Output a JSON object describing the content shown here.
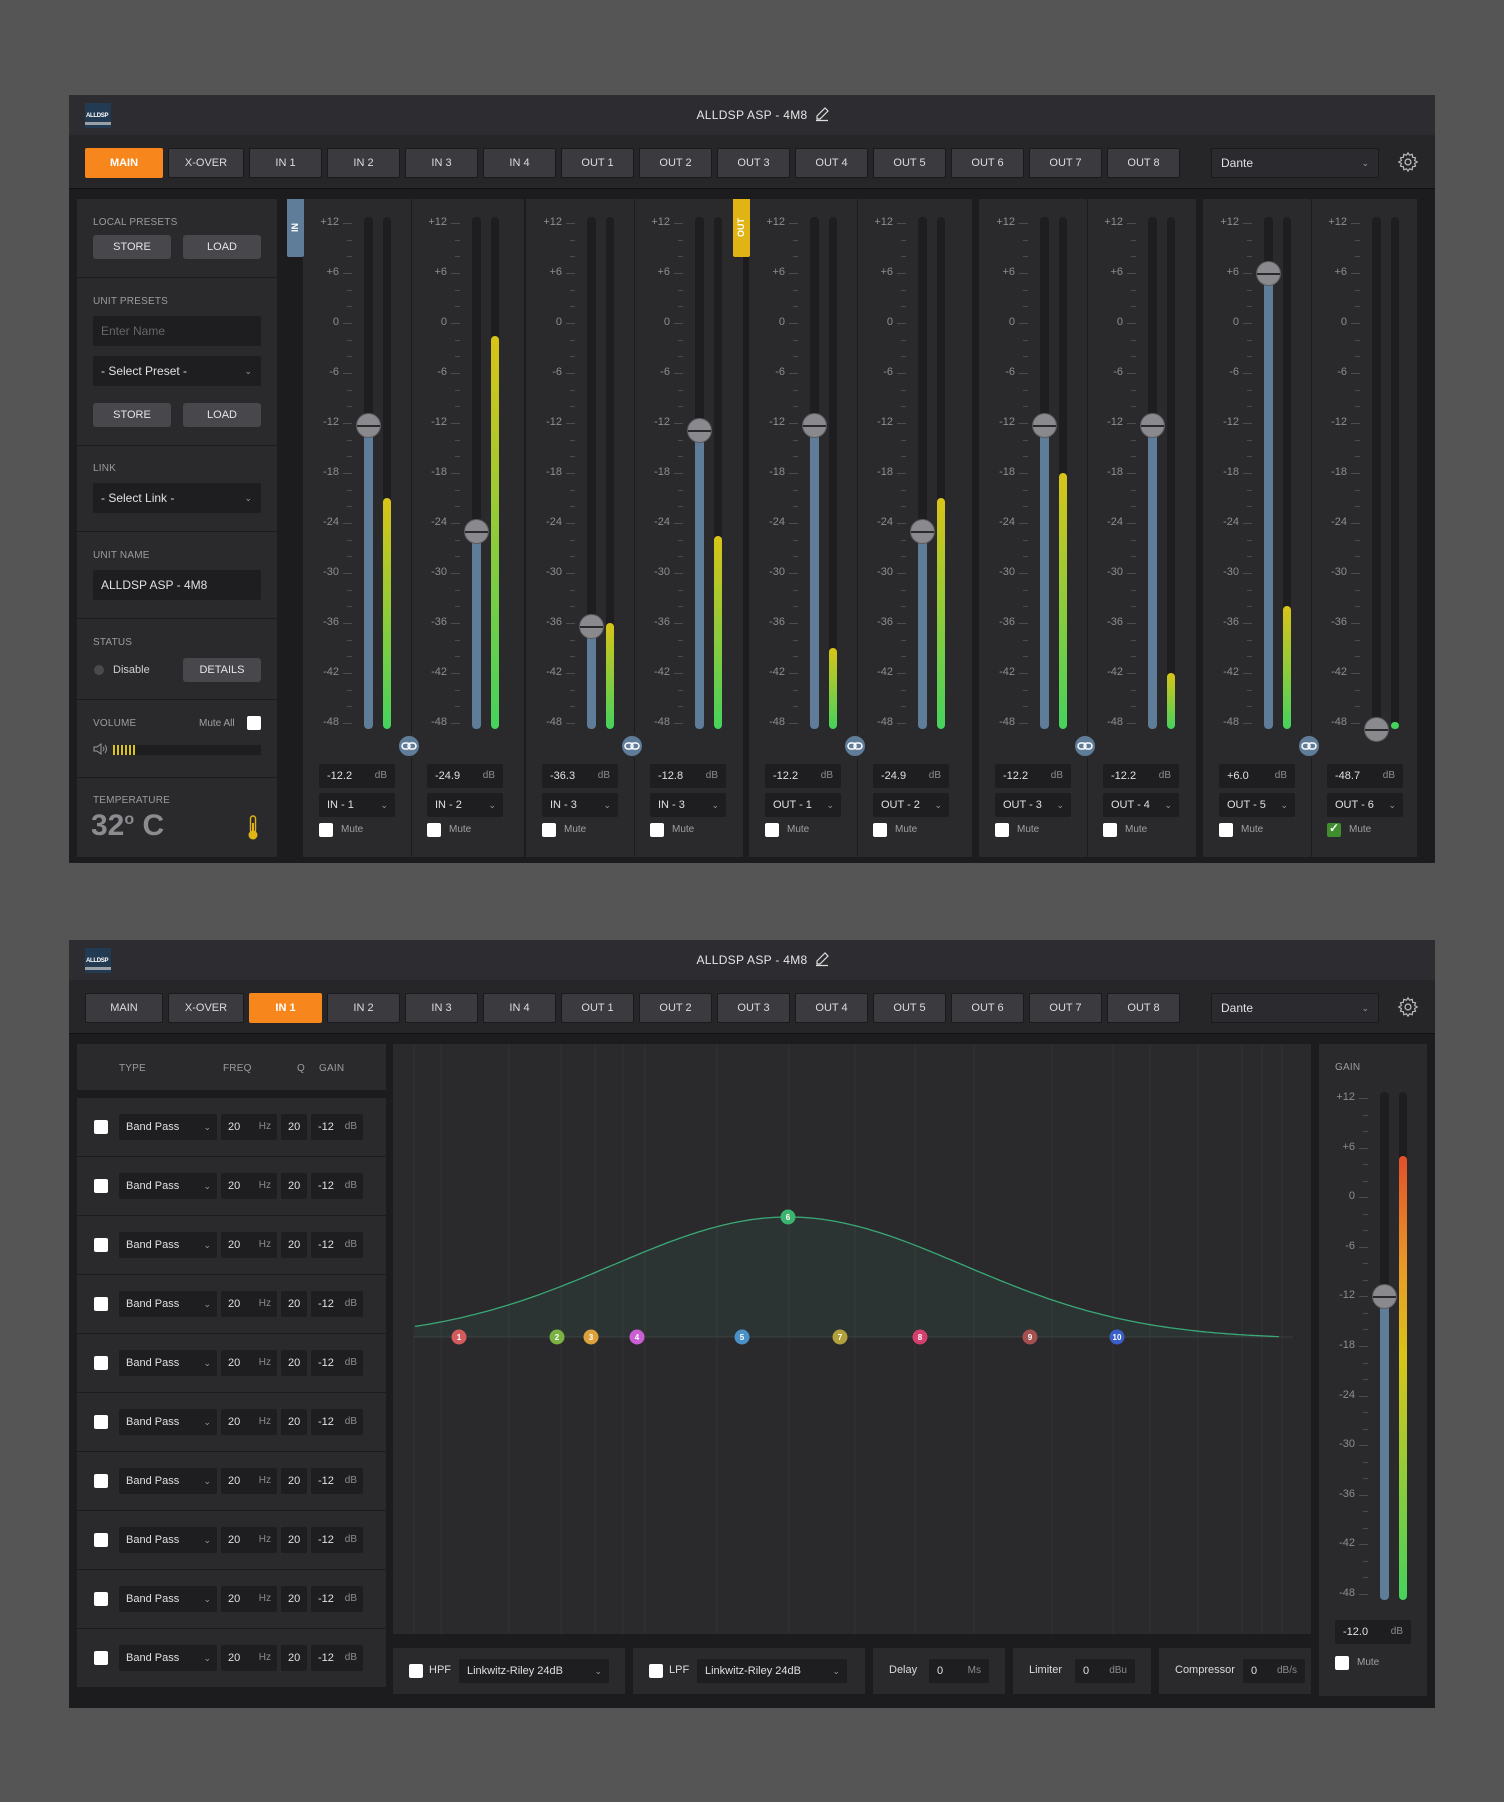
{
  "app": {
    "title": "ALLDSP ASP - 4M8",
    "logo_text": "ALLDSP"
  },
  "tabs": [
    "MAIN",
    "X-OVER",
    "IN 1",
    "IN 2",
    "IN 3",
    "IN 4",
    "OUT 1",
    "OUT 2",
    "OUT 3",
    "OUT 4",
    "OUT 5",
    "OUT 6",
    "OUT 7",
    "OUT 8"
  ],
  "network_select": "Dante",
  "sidebar": {
    "local_presets_label": "LOCAL PRESETS",
    "store_label": "STORE",
    "load_label": "LOAD",
    "unit_presets_label": "UNIT PRESETS",
    "name_placeholder": "Enter Name",
    "preset_select": "- Select Preset -",
    "link_label": "LINK",
    "link_select": "- Select Link -",
    "unit_name_label": "UNIT NAME",
    "unit_name_value": "ALLDSP ASP - 4M8",
    "status_label": "STATUS",
    "status_value": "Disable",
    "details_label": "DETAILS",
    "volume_label": "VOLUME",
    "mute_all_label": "Mute All",
    "temperature_label": "TEMPERATURE",
    "temperature_value": "32",
    "temperature_degree": "o",
    "temperature_unit": "C"
  },
  "mixer": {
    "in_badge": "IN",
    "out_badge": "OUT",
    "scale": [
      "+12",
      "+6",
      "0",
      "-6",
      "-12",
      "-18",
      "-24",
      "-30",
      "-36",
      "-42",
      "-48"
    ],
    "mute_label": "Mute",
    "db_unit": "dB",
    "channels": [
      {
        "gain": "-12.2",
        "source": "IN - 1",
        "fader": -12.2,
        "meter": -21,
        "meter_color": "#d9c417",
        "muted": false
      },
      {
        "gain": "-24.9",
        "source": "IN - 2",
        "fader": -24.9,
        "meter": -1.5,
        "meter_color": "#d9c417",
        "muted": false
      },
      {
        "gain": "-36.3",
        "source": "IN - 3",
        "fader": -36.3,
        "meter": -36,
        "meter_color": "#d9c417",
        "muted": false
      },
      {
        "gain": "-12.8",
        "source": "IN - 3",
        "fader": -12.8,
        "meter": -25.5,
        "meter_color": "#d9c417",
        "muted": false
      },
      {
        "gain": "-12.2",
        "source": "OUT - 1",
        "fader": -12.2,
        "meter": -39,
        "meter_color": "#d9c417",
        "muted": false
      },
      {
        "gain": "-24.9",
        "source": "OUT - 2",
        "fader": -24.9,
        "meter": -21,
        "meter_color": "#d9c417",
        "muted": false
      },
      {
        "gain": "-12.2",
        "source": "OUT - 3",
        "fader": -12.2,
        "meter": -18,
        "meter_color": "#d9c417",
        "muted": false
      },
      {
        "gain": "-12.2",
        "source": "OUT - 4",
        "fader": -12.2,
        "meter": -42,
        "meter_color": "#d9c417",
        "muted": false
      },
      {
        "gain": "+6.0",
        "source": "OUT - 5",
        "fader": 6.0,
        "meter": -34,
        "meter_color": "#d9c417",
        "muted": false
      },
      {
        "gain": "-48.7",
        "source": "OUT - 6",
        "fader": -48.7,
        "meter": -48,
        "meter_color": "#45d25c",
        "muted": true
      }
    ]
  },
  "eq": {
    "headers": {
      "type": "TYPE",
      "freq": "FREQ",
      "q": "Q",
      "gain": "GAIN"
    },
    "rows": [
      {
        "type": "Band Pass",
        "freq": "20",
        "q": "20",
        "gain": "-12"
      },
      {
        "type": "Band Pass",
        "freq": "20",
        "q": "20",
        "gain": "-12"
      },
      {
        "type": "Band Pass",
        "freq": "20",
        "q": "20",
        "gain": "-12"
      },
      {
        "type": "Band Pass",
        "freq": "20",
        "q": "20",
        "gain": "-12"
      },
      {
        "type": "Band Pass",
        "freq": "20",
        "q": "20",
        "gain": "-12"
      },
      {
        "type": "Band Pass",
        "freq": "20",
        "q": "20",
        "gain": "-12"
      },
      {
        "type": "Band Pass",
        "freq": "20",
        "q": "20",
        "gain": "-12"
      },
      {
        "type": "Band Pass",
        "freq": "20",
        "q": "20",
        "gain": "-12"
      },
      {
        "type": "Band Pass",
        "freq": "20",
        "q": "20",
        "gain": "-12"
      },
      {
        "type": "Band Pass",
        "freq": "20",
        "q": "20",
        "gain": "-12"
      }
    ],
    "hz_unit": "Hz",
    "db_unit": "dB",
    "nodes": [
      {
        "label": "1",
        "color": "#d25c5c"
      },
      {
        "label": "2",
        "color": "#7ab243"
      },
      {
        "label": "3",
        "color": "#dca13a"
      },
      {
        "label": "4",
        "color": "#c95fd3"
      },
      {
        "label": "5",
        "color": "#4a90c9"
      },
      {
        "label": "6",
        "color": "#3cb46e"
      },
      {
        "label": "7",
        "color": "#b1a03c"
      },
      {
        "label": "8",
        "color": "#d43f6d"
      },
      {
        "label": "9",
        "color": "#a55050"
      },
      {
        "label": "10",
        "color": "#3a5fc9"
      }
    ],
    "hpf": {
      "label": "HPF",
      "type": "Linkwitz-Riley 24dB"
    },
    "lpf": {
      "label": "LPF",
      "type": "Linkwitz-Riley 24dB"
    },
    "delay": {
      "label": "Delay",
      "value": "0",
      "unit": "Ms"
    },
    "limiter": {
      "label": "Limiter",
      "value": "0",
      "unit": "dBu"
    },
    "compressor": {
      "label": "Compressor",
      "value": "0",
      "unit": "dB/s"
    },
    "gain_panel": {
      "label": "GAIN",
      "value": "-12.0",
      "unit": "dB",
      "mute_label": "Mute",
      "fader": -12.0,
      "meter": 5
    }
  },
  "colors": {
    "accent": "#f7871d",
    "fader_blue": "#5f7c98",
    "meter_green": "#45d25c",
    "meter_yellow": "#d9c417"
  }
}
